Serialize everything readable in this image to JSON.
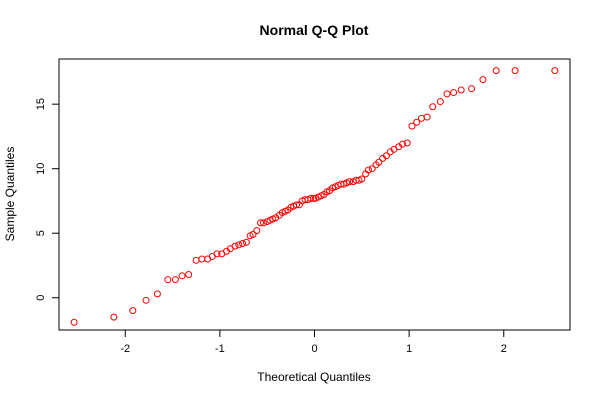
{
  "chart_data": {
    "type": "scatter",
    "title": "Normal Q-Q Plot",
    "xlabel": "Theoretical Quantiles",
    "ylabel": "Sample Quantiles",
    "xlim": [
      -2.7,
      2.7
    ],
    "ylim": [
      -2.5,
      18.5
    ],
    "xticks": [
      -2,
      -1,
      0,
      1,
      2
    ],
    "yticks": [
      0,
      5,
      10,
      15
    ],
    "grid": false,
    "legend": "none",
    "point_color": "#ff0000",
    "points": [
      [
        -2.54,
        -1.9
      ],
      [
        -2.12,
        -1.5
      ],
      [
        -1.92,
        -1.0
      ],
      [
        -1.78,
        -0.2
      ],
      [
        -1.66,
        0.3
      ],
      [
        -1.55,
        1.4
      ],
      [
        -1.47,
        1.4
      ],
      [
        -1.4,
        1.7
      ],
      [
        -1.33,
        1.8
      ],
      [
        -1.25,
        2.9
      ],
      [
        -1.19,
        3.0
      ],
      [
        -1.13,
        3.0
      ],
      [
        -1.08,
        3.2
      ],
      [
        -1.03,
        3.4
      ],
      [
        -0.98,
        3.4
      ],
      [
        -0.93,
        3.6
      ],
      [
        -0.89,
        3.8
      ],
      [
        -0.84,
        4.0
      ],
      [
        -0.8,
        4.1
      ],
      [
        -0.76,
        4.2
      ],
      [
        -0.72,
        4.3
      ],
      [
        -0.68,
        4.8
      ],
      [
        -0.65,
        4.9
      ],
      [
        -0.61,
        5.2
      ],
      [
        -0.57,
        5.8
      ],
      [
        -0.54,
        5.8
      ],
      [
        -0.5,
        5.9
      ],
      [
        -0.47,
        6.0
      ],
      [
        -0.44,
        6.1
      ],
      [
        -0.41,
        6.2
      ],
      [
        -0.37,
        6.4
      ],
      [
        -0.34,
        6.6
      ],
      [
        -0.31,
        6.7
      ],
      [
        -0.28,
        6.8
      ],
      [
        -0.25,
        7.0
      ],
      [
        -0.22,
        7.1
      ],
      [
        -0.19,
        7.2
      ],
      [
        -0.16,
        7.2
      ],
      [
        -0.13,
        7.5
      ],
      [
        -0.1,
        7.6
      ],
      [
        -0.07,
        7.6
      ],
      [
        -0.04,
        7.7
      ],
      [
        -0.01,
        7.7
      ],
      [
        0.01,
        7.7
      ],
      [
        0.04,
        7.8
      ],
      [
        0.07,
        7.9
      ],
      [
        0.1,
        8.0
      ],
      [
        0.13,
        8.2
      ],
      [
        0.16,
        8.3
      ],
      [
        0.19,
        8.5
      ],
      [
        0.22,
        8.6
      ],
      [
        0.25,
        8.7
      ],
      [
        0.28,
        8.8
      ],
      [
        0.31,
        8.8
      ],
      [
        0.34,
        8.9
      ],
      [
        0.37,
        9.0
      ],
      [
        0.41,
        9.0
      ],
      [
        0.44,
        9.1
      ],
      [
        0.47,
        9.1
      ],
      [
        0.5,
        9.2
      ],
      [
        0.54,
        9.6
      ],
      [
        0.57,
        9.9
      ],
      [
        0.61,
        10.0
      ],
      [
        0.65,
        10.3
      ],
      [
        0.68,
        10.5
      ],
      [
        0.72,
        10.8
      ],
      [
        0.76,
        11.0
      ],
      [
        0.8,
        11.3
      ],
      [
        0.84,
        11.5
      ],
      [
        0.89,
        11.7
      ],
      [
        0.93,
        11.9
      ],
      [
        0.98,
        12.0
      ],
      [
        1.03,
        13.3
      ],
      [
        1.08,
        13.6
      ],
      [
        1.13,
        13.9
      ],
      [
        1.19,
        14.0
      ],
      [
        1.25,
        14.8
      ],
      [
        1.33,
        15.2
      ],
      [
        1.4,
        15.8
      ],
      [
        1.47,
        15.9
      ],
      [
        1.55,
        16.1
      ],
      [
        1.66,
        16.2
      ],
      [
        1.78,
        16.9
      ],
      [
        1.92,
        17.6
      ],
      [
        2.12,
        17.6
      ],
      [
        2.54,
        17.6
      ]
    ]
  }
}
